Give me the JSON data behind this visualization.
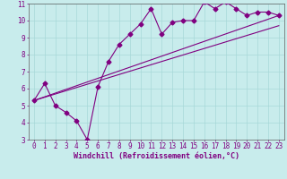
{
  "title": "",
  "xlabel": "Windchill (Refroidissement éolien,°C)",
  "bg_color": "#c8ecec",
  "line_color": "#800080",
  "grid_color": "#a8d8d8",
  "xlim": [
    -0.5,
    23.5
  ],
  "ylim": [
    3,
    11
  ],
  "xticks": [
    0,
    1,
    2,
    3,
    4,
    5,
    6,
    7,
    8,
    9,
    10,
    11,
    12,
    13,
    14,
    15,
    16,
    17,
    18,
    19,
    20,
    21,
    22,
    23
  ],
  "yticks": [
    3,
    4,
    5,
    6,
    7,
    8,
    9,
    10,
    11
  ],
  "line1_x": [
    0,
    1,
    2,
    3,
    4,
    5,
    6,
    7,
    8,
    9,
    10,
    11,
    12,
    13,
    14,
    15,
    16,
    17,
    18,
    19,
    20,
    21,
    22,
    23
  ],
  "line1_y": [
    5.3,
    6.3,
    5.0,
    4.6,
    4.1,
    3.0,
    6.1,
    7.6,
    8.6,
    9.2,
    9.8,
    10.7,
    9.2,
    9.9,
    10.0,
    10.0,
    11.1,
    10.7,
    11.1,
    10.7,
    10.3,
    10.5,
    10.5,
    10.3
  ],
  "line2_x": [
    0,
    23
  ],
  "line2_y": [
    5.3,
    10.3
  ],
  "line3_x": [
    0,
    23
  ],
  "line3_y": [
    5.3,
    9.7
  ],
  "markersize": 2.5,
  "linewidth": 0.8,
  "xlabel_fontsize": 6,
  "tick_fontsize": 5.5,
  "tick_color": "#800080",
  "label_color": "#800080"
}
